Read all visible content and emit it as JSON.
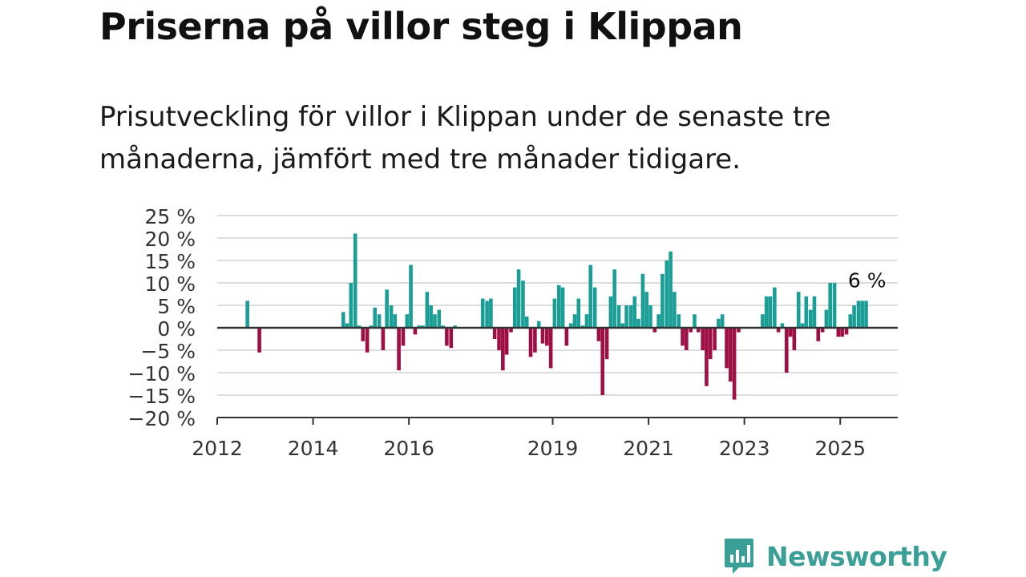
{
  "header": {
    "title": "Priserna på villor steg i Klippan",
    "subtitle": "Prisutveckling för villor i Klippan under de senaste tre månaderna, jämfört med tre månader tidigare."
  },
  "brand": {
    "name": "Newsworthy",
    "icon": "newsworthy-logo-icon",
    "color": "#3a9f96"
  },
  "colors": {
    "positive": "#1a9e96",
    "negative": "#9e0f45",
    "grid": "#dddddd",
    "axis": "#333333"
  },
  "chart_data": {
    "type": "bar",
    "title": "Priserna på villor steg i Klippan",
    "subtitle": "Prisutveckling för villor i Klippan under de senaste tre månaderna, jämfört med tre månader tidigare.",
    "xlabel": "",
    "ylabel": "",
    "ylim": [
      -20,
      25
    ],
    "xlim": [
      2012.0,
      2026.2
    ],
    "y_ticks": [
      25,
      20,
      15,
      10,
      5,
      0,
      -5,
      -10,
      -15,
      -20
    ],
    "y_tick_labels": [
      "25 %",
      "20 %",
      "15 %",
      "10 %",
      "5 %",
      "0 %",
      "−5 %",
      "−10 %",
      "−15 %",
      "−20 %"
    ],
    "x_ticks": [
      2012,
      2014,
      2016,
      2019,
      2021,
      2023,
      2025
    ],
    "x_tick_labels": [
      "2012",
      "2014",
      "2016",
      "2019",
      "2021",
      "2023",
      "2025"
    ],
    "grid": true,
    "last_value_label": "6 %",
    "series": [
      {
        "x": [
          2012.63,
          2012.88,
          2014.63,
          2014.71,
          2014.79,
          2014.88,
          2014.96,
          2015.04,
          2015.13,
          2015.21,
          2015.29,
          2015.38,
          2015.46,
          2015.54,
          2015.63,
          2015.71,
          2015.79,
          2015.88,
          2015.96,
          2016.04,
          2016.13,
          2016.21,
          2016.29,
          2016.38,
          2016.46,
          2016.54,
          2016.63,
          2016.71,
          2016.79,
          2016.88,
          2016.96,
          2017.54,
          2017.63,
          2017.71,
          2017.79,
          2017.88,
          2017.96,
          2018.04,
          2018.13,
          2018.21,
          2018.29,
          2018.38,
          2018.46,
          2018.54,
          2018.63,
          2018.71,
          2018.79,
          2018.88,
          2018.96,
          2019.04,
          2019.13,
          2019.21,
          2019.29,
          2019.38,
          2019.46,
          2019.54,
          2019.63,
          2019.71,
          2019.79,
          2019.88,
          2019.96,
          2020.04,
          2020.13,
          2020.21,
          2020.29,
          2020.38,
          2020.46,
          2020.54,
          2020.63,
          2020.71,
          2020.79,
          2020.88,
          2020.96,
          2021.04,
          2021.13,
          2021.21,
          2021.29,
          2021.38,
          2021.46,
          2021.54,
          2021.63,
          2021.71,
          2021.79,
          2021.88,
          2021.96,
          2022.04,
          2022.13,
          2022.21,
          2022.29,
          2022.38,
          2022.46,
          2022.54,
          2022.63,
          2022.71,
          2022.79,
          2022.88,
          2023.38,
          2023.46,
          2023.54,
          2023.63,
          2023.71,
          2023.79,
          2023.88,
          2023.96,
          2024.04,
          2024.13,
          2024.21,
          2024.29,
          2024.38,
          2024.46,
          2024.54,
          2024.63,
          2024.71,
          2024.79,
          2024.88,
          2024.96,
          2025.04,
          2025.13,
          2025.21,
          2025.29,
          2025.38,
          2025.46,
          2025.54
        ],
        "values": [
          6,
          -5.5,
          3.5,
          1,
          10,
          21,
          0.5,
          -3,
          -5.5,
          0.5,
          4.5,
          3,
          -5,
          8.5,
          5,
          3,
          -9.5,
          -4,
          3,
          14,
          -1.5,
          0.5,
          0.5,
          8,
          5,
          3,
          4,
          0.5,
          -4,
          -4.5,
          0.5,
          6.5,
          6,
          6.5,
          -2.5,
          -5,
          -9.5,
          -6,
          -1,
          9,
          13,
          10.5,
          2.5,
          -6.5,
          -5.5,
          1.5,
          -3.5,
          -4,
          -9,
          6.5,
          9.5,
          9,
          -4,
          1,
          3,
          6.5,
          0.5,
          3,
          14,
          9,
          -3,
          -15,
          -7,
          7,
          13,
          5,
          1,
          5,
          5,
          7,
          2,
          12,
          8,
          5,
          -1,
          3,
          12,
          15,
          17,
          8,
          3,
          -4,
          -5,
          -1,
          3,
          -1,
          -5,
          -13,
          -7,
          -5,
          2,
          3,
          -9,
          -12,
          -16,
          -1,
          3,
          7,
          7,
          9,
          -1,
          1,
          -10,
          -2,
          -5,
          8,
          1,
          7,
          4,
          7,
          -3,
          -1,
          4,
          10,
          10,
          -2,
          -2,
          -1.5,
          3,
          5,
          6,
          6,
          6
        ]
      }
    ]
  }
}
